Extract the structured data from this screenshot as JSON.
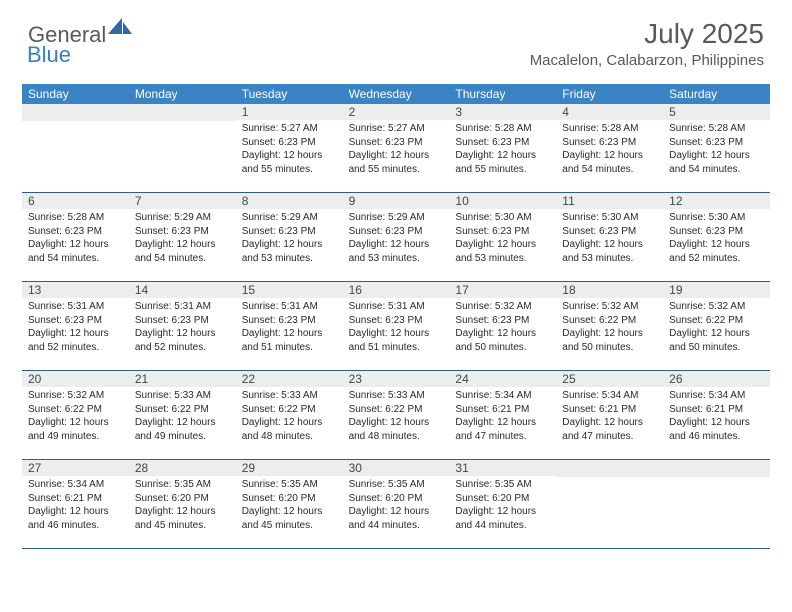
{
  "logo": {
    "general": "General",
    "blue": "Blue"
  },
  "title": "July 2025",
  "location": "Macalelon, Calabarzon, Philippines",
  "colors": {
    "header_bg": "#3a83c4",
    "header_text": "#ffffff",
    "daynum_bg": "#eceded",
    "divider": "#2f5d8e",
    "logo_gray": "#5a5a5a",
    "logo_blue": "#3a7fc0",
    "title_color": "#585858"
  },
  "weekdays": [
    "Sunday",
    "Monday",
    "Tuesday",
    "Wednesday",
    "Thursday",
    "Friday",
    "Saturday"
  ],
  "weeks": [
    [
      {
        "day": "",
        "sunrise": "",
        "sunset": "",
        "daylight": ""
      },
      {
        "day": "",
        "sunrise": "",
        "sunset": "",
        "daylight": ""
      },
      {
        "day": "1",
        "sunrise": "Sunrise: 5:27 AM",
        "sunset": "Sunset: 6:23 PM",
        "daylight": "Daylight: 12 hours and 55 minutes."
      },
      {
        "day": "2",
        "sunrise": "Sunrise: 5:27 AM",
        "sunset": "Sunset: 6:23 PM",
        "daylight": "Daylight: 12 hours and 55 minutes."
      },
      {
        "day": "3",
        "sunrise": "Sunrise: 5:28 AM",
        "sunset": "Sunset: 6:23 PM",
        "daylight": "Daylight: 12 hours and 55 minutes."
      },
      {
        "day": "4",
        "sunrise": "Sunrise: 5:28 AM",
        "sunset": "Sunset: 6:23 PM",
        "daylight": "Daylight: 12 hours and 54 minutes."
      },
      {
        "day": "5",
        "sunrise": "Sunrise: 5:28 AM",
        "sunset": "Sunset: 6:23 PM",
        "daylight": "Daylight: 12 hours and 54 minutes."
      }
    ],
    [
      {
        "day": "6",
        "sunrise": "Sunrise: 5:28 AM",
        "sunset": "Sunset: 6:23 PM",
        "daylight": "Daylight: 12 hours and 54 minutes."
      },
      {
        "day": "7",
        "sunrise": "Sunrise: 5:29 AM",
        "sunset": "Sunset: 6:23 PM",
        "daylight": "Daylight: 12 hours and 54 minutes."
      },
      {
        "day": "8",
        "sunrise": "Sunrise: 5:29 AM",
        "sunset": "Sunset: 6:23 PM",
        "daylight": "Daylight: 12 hours and 53 minutes."
      },
      {
        "day": "9",
        "sunrise": "Sunrise: 5:29 AM",
        "sunset": "Sunset: 6:23 PM",
        "daylight": "Daylight: 12 hours and 53 minutes."
      },
      {
        "day": "10",
        "sunrise": "Sunrise: 5:30 AM",
        "sunset": "Sunset: 6:23 PM",
        "daylight": "Daylight: 12 hours and 53 minutes."
      },
      {
        "day": "11",
        "sunrise": "Sunrise: 5:30 AM",
        "sunset": "Sunset: 6:23 PM",
        "daylight": "Daylight: 12 hours and 53 minutes."
      },
      {
        "day": "12",
        "sunrise": "Sunrise: 5:30 AM",
        "sunset": "Sunset: 6:23 PM",
        "daylight": "Daylight: 12 hours and 52 minutes."
      }
    ],
    [
      {
        "day": "13",
        "sunrise": "Sunrise: 5:31 AM",
        "sunset": "Sunset: 6:23 PM",
        "daylight": "Daylight: 12 hours and 52 minutes."
      },
      {
        "day": "14",
        "sunrise": "Sunrise: 5:31 AM",
        "sunset": "Sunset: 6:23 PM",
        "daylight": "Daylight: 12 hours and 52 minutes."
      },
      {
        "day": "15",
        "sunrise": "Sunrise: 5:31 AM",
        "sunset": "Sunset: 6:23 PM",
        "daylight": "Daylight: 12 hours and 51 minutes."
      },
      {
        "day": "16",
        "sunrise": "Sunrise: 5:31 AM",
        "sunset": "Sunset: 6:23 PM",
        "daylight": "Daylight: 12 hours and 51 minutes."
      },
      {
        "day": "17",
        "sunrise": "Sunrise: 5:32 AM",
        "sunset": "Sunset: 6:23 PM",
        "daylight": "Daylight: 12 hours and 50 minutes."
      },
      {
        "day": "18",
        "sunrise": "Sunrise: 5:32 AM",
        "sunset": "Sunset: 6:22 PM",
        "daylight": "Daylight: 12 hours and 50 minutes."
      },
      {
        "day": "19",
        "sunrise": "Sunrise: 5:32 AM",
        "sunset": "Sunset: 6:22 PM",
        "daylight": "Daylight: 12 hours and 50 minutes."
      }
    ],
    [
      {
        "day": "20",
        "sunrise": "Sunrise: 5:32 AM",
        "sunset": "Sunset: 6:22 PM",
        "daylight": "Daylight: 12 hours and 49 minutes."
      },
      {
        "day": "21",
        "sunrise": "Sunrise: 5:33 AM",
        "sunset": "Sunset: 6:22 PM",
        "daylight": "Daylight: 12 hours and 49 minutes."
      },
      {
        "day": "22",
        "sunrise": "Sunrise: 5:33 AM",
        "sunset": "Sunset: 6:22 PM",
        "daylight": "Daylight: 12 hours and 48 minutes."
      },
      {
        "day": "23",
        "sunrise": "Sunrise: 5:33 AM",
        "sunset": "Sunset: 6:22 PM",
        "daylight": "Daylight: 12 hours and 48 minutes."
      },
      {
        "day": "24",
        "sunrise": "Sunrise: 5:34 AM",
        "sunset": "Sunset: 6:21 PM",
        "daylight": "Daylight: 12 hours and 47 minutes."
      },
      {
        "day": "25",
        "sunrise": "Sunrise: 5:34 AM",
        "sunset": "Sunset: 6:21 PM",
        "daylight": "Daylight: 12 hours and 47 minutes."
      },
      {
        "day": "26",
        "sunrise": "Sunrise: 5:34 AM",
        "sunset": "Sunset: 6:21 PM",
        "daylight": "Daylight: 12 hours and 46 minutes."
      }
    ],
    [
      {
        "day": "27",
        "sunrise": "Sunrise: 5:34 AM",
        "sunset": "Sunset: 6:21 PM",
        "daylight": "Daylight: 12 hours and 46 minutes."
      },
      {
        "day": "28",
        "sunrise": "Sunrise: 5:35 AM",
        "sunset": "Sunset: 6:20 PM",
        "daylight": "Daylight: 12 hours and 45 minutes."
      },
      {
        "day": "29",
        "sunrise": "Sunrise: 5:35 AM",
        "sunset": "Sunset: 6:20 PM",
        "daylight": "Daylight: 12 hours and 45 minutes."
      },
      {
        "day": "30",
        "sunrise": "Sunrise: 5:35 AM",
        "sunset": "Sunset: 6:20 PM",
        "daylight": "Daylight: 12 hours and 44 minutes."
      },
      {
        "day": "31",
        "sunrise": "Sunrise: 5:35 AM",
        "sunset": "Sunset: 6:20 PM",
        "daylight": "Daylight: 12 hours and 44 minutes."
      },
      {
        "day": "",
        "sunrise": "",
        "sunset": "",
        "daylight": ""
      },
      {
        "day": "",
        "sunrise": "",
        "sunset": "",
        "daylight": ""
      }
    ]
  ]
}
